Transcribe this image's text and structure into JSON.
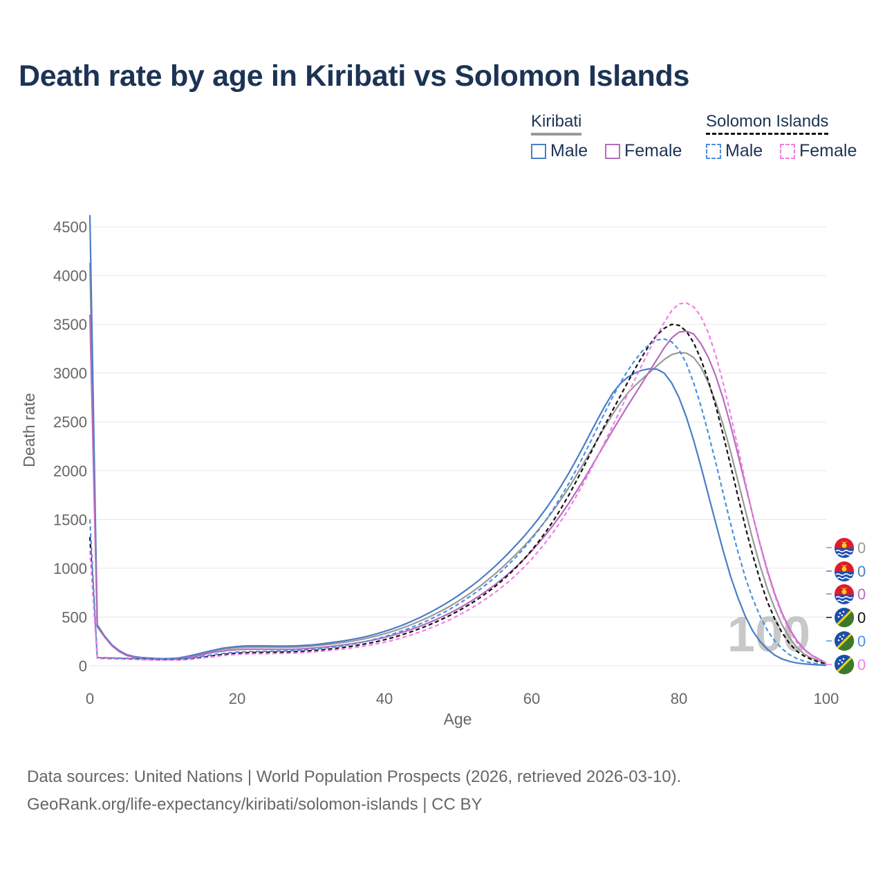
{
  "title": "Death rate by age in Kiribati vs Solomon Islands",
  "legend": {
    "groups": [
      {
        "name": "Kiribati",
        "color": "#999999",
        "dashed": false,
        "items": [
          {
            "label": "Male",
            "color": "#4a7cc6"
          },
          {
            "label": "Female",
            "color": "#b56cbe"
          }
        ]
      },
      {
        "name": "Solomon Islands",
        "color": "#111111",
        "dashed": true,
        "items": [
          {
            "label": "Male",
            "color": "#4a90e2"
          },
          {
            "label": "Female",
            "color": "#f27ee6"
          }
        ]
      }
    ]
  },
  "footer": {
    "line1": "Data sources: United Nations | World Population Prospects (2026, retrieved 2026-03-10).",
    "line2": "GeoRank.org/life-expectancy/kiribati/solomon-islands | CC BY"
  },
  "chart_data": {
    "type": "line",
    "xlabel": "Age",
    "ylabel": "Death rate",
    "xlim": [
      0,
      100
    ],
    "ylim": [
      0,
      4500
    ],
    "xticks": [
      0,
      20,
      40,
      60,
      80,
      100
    ],
    "yticks": [
      0,
      500,
      1000,
      1500,
      2000,
      2500,
      3000,
      3500,
      4000,
      4500
    ],
    "grid": true,
    "age_marker": "100",
    "end_labels": [
      "0",
      "0",
      "0",
      "0",
      "0",
      "0"
    ],
    "x": [
      0,
      1,
      2,
      3,
      4,
      5,
      6,
      7,
      8,
      9,
      10,
      11,
      12,
      13,
      14,
      15,
      16,
      17,
      18,
      19,
      20,
      21,
      22,
      23,
      24,
      25,
      26,
      27,
      28,
      29,
      30,
      31,
      32,
      33,
      34,
      35,
      36,
      37,
      38,
      39,
      40,
      41,
      42,
      43,
      44,
      45,
      46,
      47,
      48,
      49,
      50,
      51,
      52,
      53,
      54,
      55,
      56,
      57,
      58,
      59,
      60,
      61,
      62,
      63,
      64,
      65,
      66,
      67,
      68,
      69,
      70,
      71,
      72,
      73,
      74,
      75,
      76,
      77,
      78,
      79,
      80,
      81,
      82,
      83,
      84,
      85,
      86,
      87,
      88,
      89,
      90,
      91,
      92,
      93,
      94,
      95,
      96,
      97,
      98,
      99,
      100
    ],
    "series": [
      {
        "name": "Kiribati",
        "color": "#999999",
        "dash": "",
        "values": [
          4130,
          410,
          300,
          210,
          150,
          110,
          92,
          82,
          76,
          72,
          70,
          71,
          76,
          90,
          104,
          120,
          138,
          155,
          170,
          178,
          186,
          191,
          192,
          192,
          191,
          190,
          189,
          190,
          192,
          196,
          201,
          208,
          216,
          225,
          235,
          246,
          258,
          272,
          289,
          307,
          328,
          351,
          376,
          403,
          433,
          465,
          499,
          535,
          574,
          616,
          661,
          710,
          762,
          818,
          878,
          941,
          1008,
          1079,
          1153,
          1231,
          1314,
          1403,
          1498,
          1599,
          1707,
          1822,
          1943,
          2069,
          2198,
          2328,
          2456,
          2579,
          2692,
          2790,
          2871,
          2940,
          3006,
          3075,
          3140,
          3190,
          3210,
          3205,
          3160,
          3060,
          2900,
          2700,
          2470,
          2200,
          1900,
          1600,
          1300,
          1030,
          790,
          590,
          420,
          290,
          190,
          120,
          80,
          55,
          20
        ]
      },
      {
        "name": "Kiribati Male",
        "color": "#4a7cc6",
        "dash": "",
        "values": [
          4620,
          420,
          305,
          215,
          155,
          115,
          95,
          85,
          80,
          76,
          74,
          75,
          80,
          94,
          110,
          128,
          147,
          164,
          180,
          190,
          198,
          203,
          205,
          205,
          204,
          203,
          202,
          203,
          205,
          209,
          214,
          221,
          230,
          240,
          251,
          263,
          276,
          291,
          309,
          329,
          352,
          377,
          404,
          434,
          467,
          502,
          540,
          580,
          623,
          669,
          718,
          771,
          827,
          887,
          951,
          1019,
          1091,
          1167,
          1247,
          1331,
          1420,
          1515,
          1617,
          1727,
          1845,
          1971,
          2105,
          2245,
          2389,
          2533,
          2670,
          2795,
          2890,
          2955,
          3000,
          3030,
          3045,
          3040,
          3000,
          2900,
          2750,
          2550,
          2310,
          2040,
          1750,
          1460,
          1180,
          920,
          700,
          510,
          360,
          250,
          170,
          110,
          70,
          45,
          30,
          20,
          15,
          10,
          5
        ]
      },
      {
        "name": "Kiribati Female",
        "color": "#b56cbe",
        "dash": "",
        "values": [
          3600,
          400,
          295,
          205,
          145,
          105,
          88,
          78,
          72,
          68,
          66,
          67,
          72,
          84,
          96,
          110,
          126,
          140,
          152,
          160,
          166,
          170,
          171,
          171,
          170,
          169,
          168,
          169,
          171,
          175,
          180,
          186,
          193,
          201,
          210,
          220,
          231,
          243,
          257,
          273,
          291,
          311,
          333,
          357,
          383,
          411,
          441,
          473,
          508,
          545,
          585,
          628,
          674,
          723,
          775,
          830,
          890,
          954,
          1023,
          1097,
          1177,
          1262,
          1353,
          1450,
          1553,
          1662,
          1778,
          1900,
          2026,
          2155,
          2284,
          2412,
          2538,
          2660,
          2780,
          2900,
          3020,
          3140,
          3260,
          3360,
          3420,
          3430,
          3400,
          3300,
          3160,
          2970,
          2740,
          2470,
          2170,
          1860,
          1550,
          1250,
          980,
          740,
          540,
          380,
          260,
          170,
          110,
          70,
          30
        ]
      },
      {
        "name": "Solomon Islands",
        "color": "#111111",
        "dash": "6,4",
        "values": [
          1320,
          80,
          78,
          76,
          74,
          72,
          70,
          68,
          66,
          64,
          63,
          63,
          64,
          68,
          76,
          86,
          96,
          106,
          116,
          124,
          130,
          134,
          137,
          138,
          139,
          140,
          141,
          143,
          146,
          150,
          155,
          161,
          168,
          176,
          185,
          195,
          206,
          219,
          233,
          249,
          267,
          287,
          309,
          333,
          359,
          387,
          417,
          449,
          484,
          521,
          561,
          604,
          650,
          700,
          754,
          812,
          875,
          943,
          1017,
          1097,
          1184,
          1279,
          1382,
          1494,
          1615,
          1745,
          1884,
          2030,
          2180,
          2330,
          2477,
          2620,
          2760,
          2900,
          3040,
          3170,
          3290,
          3390,
          3460,
          3500,
          3490,
          3430,
          3310,
          3140,
          2920,
          2660,
          2370,
          2060,
          1740,
          1430,
          1140,
          880,
          660,
          480,
          340,
          230,
          150,
          100,
          65,
          40,
          20
        ]
      },
      {
        "name": "Solomon Islands Male",
        "color": "#4a90e2",
        "dash": "6,4",
        "values": [
          1500,
          85,
          83,
          81,
          79,
          77,
          75,
          73,
          71,
          69,
          68,
          68,
          69,
          74,
          83,
          94,
          105,
          116,
          126,
          134,
          140,
          144,
          147,
          148,
          149,
          150,
          151,
          153,
          157,
          162,
          168,
          175,
          183,
          192,
          202,
          214,
          227,
          242,
          259,
          278,
          299,
          322,
          347,
          374,
          403,
          435,
          469,
          505,
          544,
          586,
          631,
          679,
          730,
          785,
          844,
          907,
          975,
          1048,
          1126,
          1210,
          1300,
          1397,
          1502,
          1615,
          1736,
          1865,
          2003,
          2148,
          2298,
          2452,
          2606,
          2755,
          2895,
          3020,
          3130,
          3225,
          3295,
          3340,
          3350,
          3320,
          3240,
          3100,
          2900,
          2660,
          2380,
          2080,
          1770,
          1460,
          1170,
          910,
          690,
          510,
          365,
          255,
          175,
          115,
          75,
          48,
          30,
          20,
          10
        ]
      },
      {
        "name": "Solomon Islands Female",
        "color": "#f27ee6",
        "dash": "6,4",
        "values": [
          1180,
          75,
          73,
          71,
          69,
          67,
          65,
          63,
          61,
          59,
          58,
          58,
          59,
          62,
          69,
          78,
          87,
          96,
          105,
          112,
          117,
          121,
          123,
          124,
          125,
          126,
          127,
          129,
          132,
          136,
          141,
          147,
          154,
          161,
          169,
          178,
          188,
          199,
          212,
          226,
          242,
          260,
          280,
          302,
          326,
          352,
          380,
          410,
          442,
          477,
          515,
          556,
          600,
          647,
          697,
          751,
          809,
          872,
          940,
          1014,
          1094,
          1181,
          1275,
          1377,
          1487,
          1605,
          1731,
          1865,
          2006,
          2153,
          2305,
          2460,
          2617,
          2775,
          2932,
          3088,
          3240,
          3385,
          3520,
          3640,
          3710,
          3720,
          3680,
          3580,
          3410,
          3180,
          2900,
          2580,
          2240,
          1890,
          1550,
          1240,
          960,
          720,
          520,
          360,
          240,
          160,
          105,
          65,
          30
        ]
      }
    ]
  }
}
